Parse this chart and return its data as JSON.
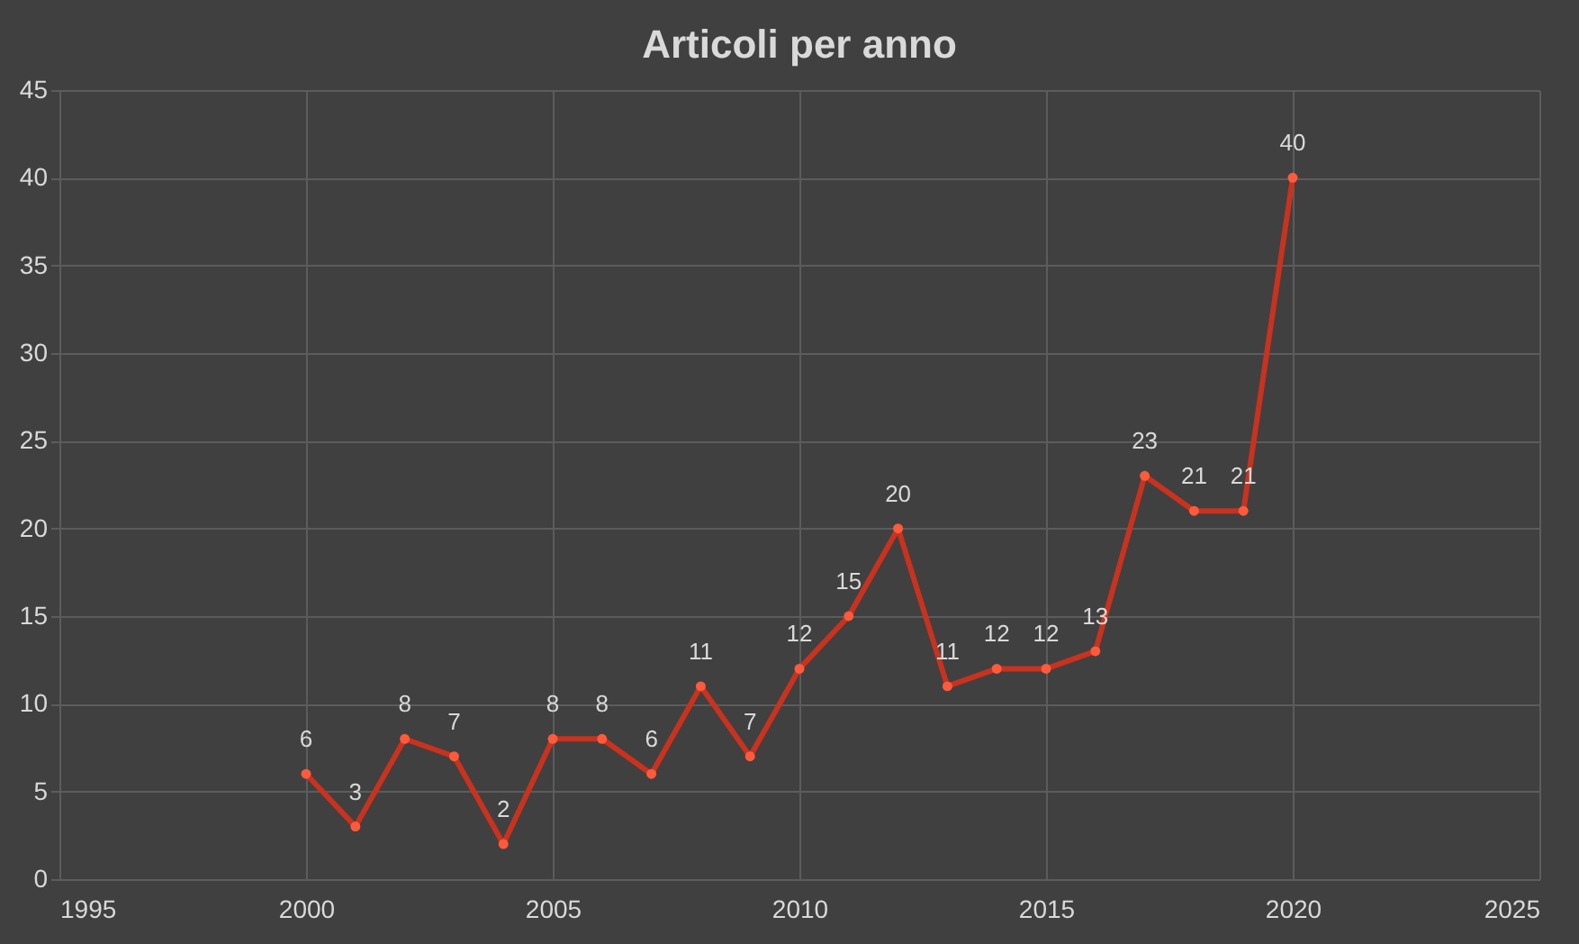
{
  "chart_data": {
    "type": "line",
    "title": "Articoli per anno",
    "x": [
      2000,
      2001,
      2002,
      2003,
      2004,
      2005,
      2006,
      2007,
      2008,
      2009,
      2010,
      2011,
      2012,
      2013,
      2014,
      2015,
      2016,
      2017,
      2018,
      2019,
      2020
    ],
    "series": [
      {
        "color": "#c8321e",
        "values": [
          6,
          3,
          8,
          7,
          2,
          8,
          8,
          6,
          11,
          7,
          12,
          15,
          20,
          11,
          12,
          12,
          13,
          23,
          21,
          21,
          40
        ]
      }
    ],
    "xlim": [
      1995,
      2025
    ],
    "xticks": [
      1995,
      2000,
      2005,
      2010,
      2015,
      2020,
      2025
    ],
    "ylim": [
      0,
      45
    ],
    "yticks": [
      0,
      5,
      10,
      15,
      20,
      25,
      30,
      35,
      40,
      45
    ],
    "grid": true,
    "marker": "circle",
    "line_style": "solid",
    "data_labels": true
  }
}
